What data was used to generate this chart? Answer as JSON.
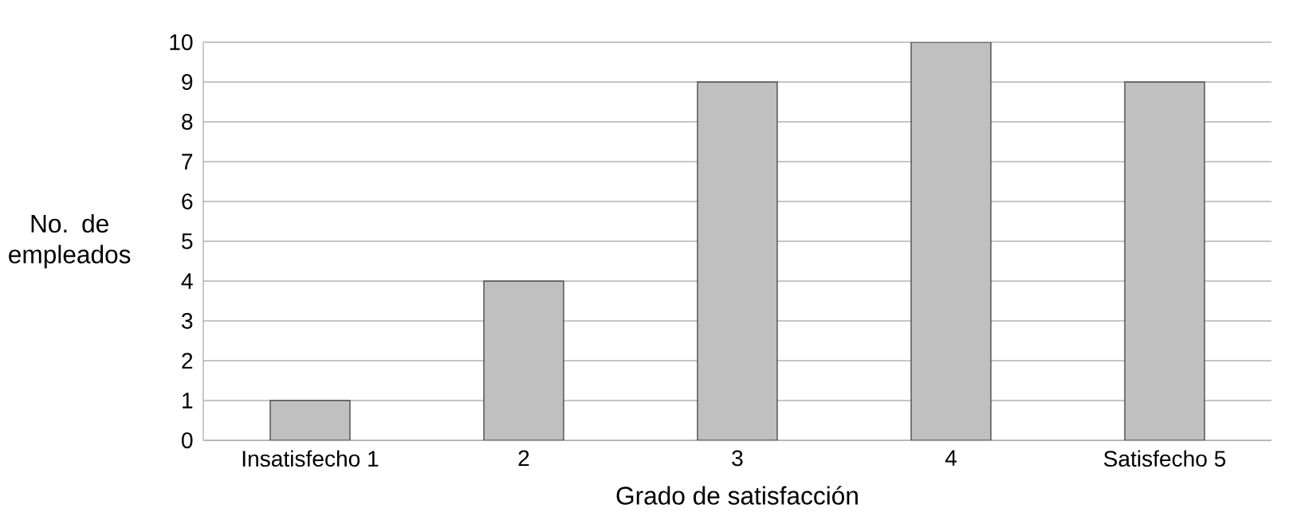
{
  "chart_data": {
    "type": "bar",
    "xlabel": "Grado de satisfacción",
    "ylabel": "No. de empleados",
    "categories": [
      "Insatisfecho 1",
      "2",
      "3",
      "4",
      "Satisfecho 5"
    ],
    "values": [
      1,
      4,
      9,
      10,
      9
    ],
    "color": "#c0c0c0",
    "ylim": [
      0,
      10
    ],
    "yticks": [
      0,
      1,
      2,
      3,
      4,
      5,
      6,
      7,
      8,
      9,
      10
    ],
    "grid": "y"
  }
}
